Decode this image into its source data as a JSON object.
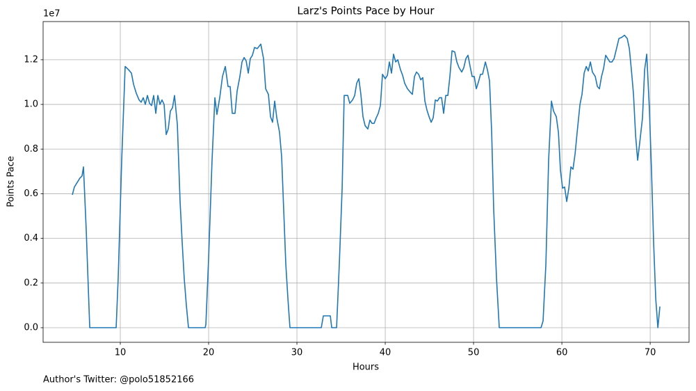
{
  "chart_data": {
    "type": "line",
    "title": "Larz's Points Pace by Hour",
    "xlabel": "Hours",
    "ylabel": "Points Pace",
    "y_offset_label": "1e7",
    "footnote": "Author's Twitter: @polo51852166",
    "x": [
      4.57,
      4.8,
      5.43,
      5.67,
      5.83,
      6.14,
      6.54,
      9.53,
      9.76,
      10.16,
      10.55,
      10.94,
      11.26,
      11.5,
      11.81,
      12.13,
      12.36,
      12.6,
      12.83,
      13.07,
      13.31,
      13.54,
      13.78,
      14.02,
      14.25,
      14.49,
      14.72,
      14.96,
      15.2,
      15.43,
      15.67,
      15.91,
      16.14,
      16.46,
      16.77,
      17.01,
      17.24,
      17.48,
      17.72,
      19.61,
      19.69,
      20.0,
      20.39,
      20.71,
      20.94,
      21.26,
      21.57,
      21.89,
      22.2,
      22.44,
      22.68,
      22.99,
      23.23,
      23.54,
      23.78,
      24.02,
      24.25,
      24.49,
      24.72,
      24.96,
      25.2,
      25.51,
      25.91,
      26.22,
      26.46,
      26.77,
      27.01,
      27.24,
      27.48,
      27.72,
      28.03,
      28.27,
      28.5,
      28.74,
      28.98,
      29.21,
      32.76,
      32.99,
      33.78,
      33.94,
      34.49,
      34.8,
      35.12,
      35.35,
      35.75,
      35.98,
      36.3,
      36.54,
      36.77,
      37.01,
      37.24,
      37.48,
      37.72,
      38.03,
      38.27,
      38.5,
      38.74,
      38.98,
      39.21,
      39.45,
      39.69,
      40.0,
      40.24,
      40.47,
      40.71,
      40.94,
      41.18,
      41.42,
      41.73,
      41.97,
      42.2,
      42.52,
      42.83,
      43.07,
      43.31,
      43.54,
      43.78,
      44.02,
      44.25,
      44.49,
      44.72,
      44.96,
      45.2,
      45.43,
      45.67,
      45.91,
      46.14,
      46.38,
      46.61,
      46.85,
      47.09,
      47.32,
      47.56,
      47.87,
      48.11,
      48.35,
      48.66,
      48.9,
      49.13,
      49.37,
      49.61,
      49.84,
      50.08,
      50.31,
      50.55,
      50.79,
      51.02,
      51.34,
      51.57,
      51.81,
      52.05,
      52.28,
      52.6,
      52.91,
      57.64,
      57.87,
      58.19,
      58.5,
      58.82,
      59.06,
      59.37,
      59.61,
      59.84,
      60.08,
      60.31,
      60.55,
      60.79,
      61.02,
      61.26,
      61.5,
      61.73,
      62.05,
      62.28,
      62.52,
      62.76,
      62.99,
      63.23,
      63.46,
      63.78,
      64.02,
      64.25,
      64.49,
      64.72,
      64.96,
      65.2,
      65.43,
      65.67,
      65.91,
      66.22,
      66.46,
      66.77,
      67.09,
      67.4,
      67.64,
      67.87,
      68.11,
      68.35,
      68.58,
      68.82,
      69.13,
      69.37,
      69.61,
      69.92,
      70.16,
      70.39,
      70.63,
      70.87,
      71.1
    ],
    "series": [
      {
        "name": "Points Pace",
        "color": "#1f77b4",
        "values": [
          5950000,
          6300000,
          6700000,
          6800000,
          7200000,
          4400000,
          0,
          0,
          2200000,
          7500000,
          11700000,
          11550000,
          11400000,
          10900000,
          10500000,
          10200000,
          10100000,
          10300000,
          10000000,
          10400000,
          10050000,
          9950000,
          10400000,
          9600000,
          10400000,
          10000000,
          10200000,
          10000000,
          8650000,
          8900000,
          9700000,
          9850000,
          10400000,
          9100000,
          5650000,
          3800000,
          2200000,
          1000000,
          0,
          0,
          150000,
          3100000,
          7500000,
          10300000,
          9550000,
          10300000,
          11250000,
          11700000,
          10800000,
          10800000,
          9600000,
          9600000,
          10600000,
          11250000,
          11900000,
          12100000,
          11950000,
          11400000,
          12050000,
          12200000,
          12550000,
          12500000,
          12700000,
          12050000,
          10700000,
          10450000,
          9450000,
          9200000,
          10150000,
          9400000,
          8750000,
          7650000,
          5300000,
          2850000,
          1300000,
          0,
          0,
          530000,
          530000,
          0,
          0,
          2850000,
          6250000,
          10400000,
          10400000,
          10050000,
          10200000,
          10400000,
          10950000,
          11150000,
          10450000,
          9450000,
          9050000,
          8900000,
          9300000,
          9150000,
          9150000,
          9400000,
          9600000,
          9950000,
          11350000,
          11150000,
          11300000,
          11900000,
          11400000,
          12250000,
          11900000,
          12000000,
          11550000,
          11300000,
          10950000,
          10700000,
          10550000,
          10450000,
          11250000,
          11450000,
          11350000,
          11100000,
          11200000,
          10150000,
          9750000,
          9450000,
          9200000,
          9400000,
          10200000,
          10150000,
          10300000,
          10300000,
          9600000,
          10400000,
          10400000,
          11250000,
          12400000,
          12350000,
          11900000,
          11650000,
          11450000,
          11650000,
          12050000,
          12200000,
          11700000,
          11250000,
          11250000,
          10700000,
          11000000,
          11350000,
          11350000,
          11900000,
          11550000,
          11050000,
          8750000,
          5300000,
          2200000,
          0,
          0,
          300000,
          2850000,
          7500000,
          10150000,
          9700000,
          9450000,
          8750000,
          7050000,
          6250000,
          6300000,
          5650000,
          6250000,
          7200000,
          7100000,
          7800000,
          8750000,
          10000000,
          10450000,
          11400000,
          11700000,
          11500000,
          11900000,
          11450000,
          11250000,
          10800000,
          10700000,
          11250000,
          11600000,
          12200000,
          12050000,
          11900000,
          11900000,
          12050000,
          12550000,
          12950000,
          13000000,
          13100000,
          12950000,
          12500000,
          11550000,
          10450000,
          8600000,
          7500000,
          8300000,
          9400000,
          11550000,
          12250000,
          9700000,
          6900000,
          3800000,
          1300000,
          0,
          950000
        ]
      }
    ],
    "xlim": [
      1.26,
      74.4
    ],
    "ylim": [
      -654000,
      13710000
    ],
    "xticks": [
      10,
      20,
      30,
      40,
      50,
      60,
      70
    ],
    "yticks": [
      {
        "value": 0,
        "label": "0.0"
      },
      {
        "value": 2000000,
        "label": "0.2"
      },
      {
        "value": 4000000,
        "label": "0.4"
      },
      {
        "value": 6000000,
        "label": "0.6"
      },
      {
        "value": 8000000,
        "label": "0.8"
      },
      {
        "value": 10000000,
        "label": "1.0"
      },
      {
        "value": 12000000,
        "label": "1.2"
      }
    ],
    "grid": true
  }
}
